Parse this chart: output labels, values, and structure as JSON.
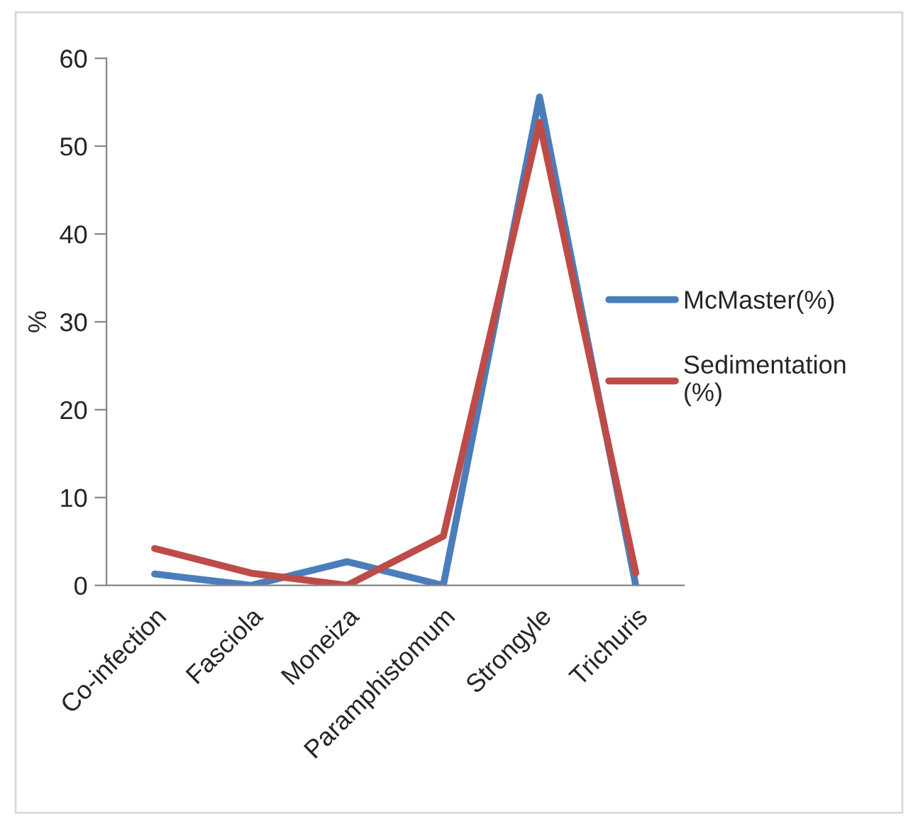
{
  "chart_data": {
    "type": "line",
    "ylabel": "%",
    "categories": [
      "Co-infection",
      "Fasciola",
      "Moneiza",
      "Paramphistomum",
      "Strongyle",
      "Trichuris"
    ],
    "series": [
      {
        "name": "McMaster(%)",
        "color": "#4a7ebb",
        "values": [
          1.3,
          0,
          2.7,
          0,
          55.6,
          0
        ]
      },
      {
        "name": "Sedimentation (%)",
        "color": "#be4b48",
        "values": [
          4.2,
          1.4,
          0,
          5.6,
          52.7,
          1.4
        ]
      }
    ],
    "ylim": [
      0,
      60
    ],
    "yticks": [
      0,
      10,
      20,
      30,
      40,
      50,
      60
    ],
    "grid": false,
    "legend": "right",
    "marker": "none",
    "line_style": "solid"
  }
}
